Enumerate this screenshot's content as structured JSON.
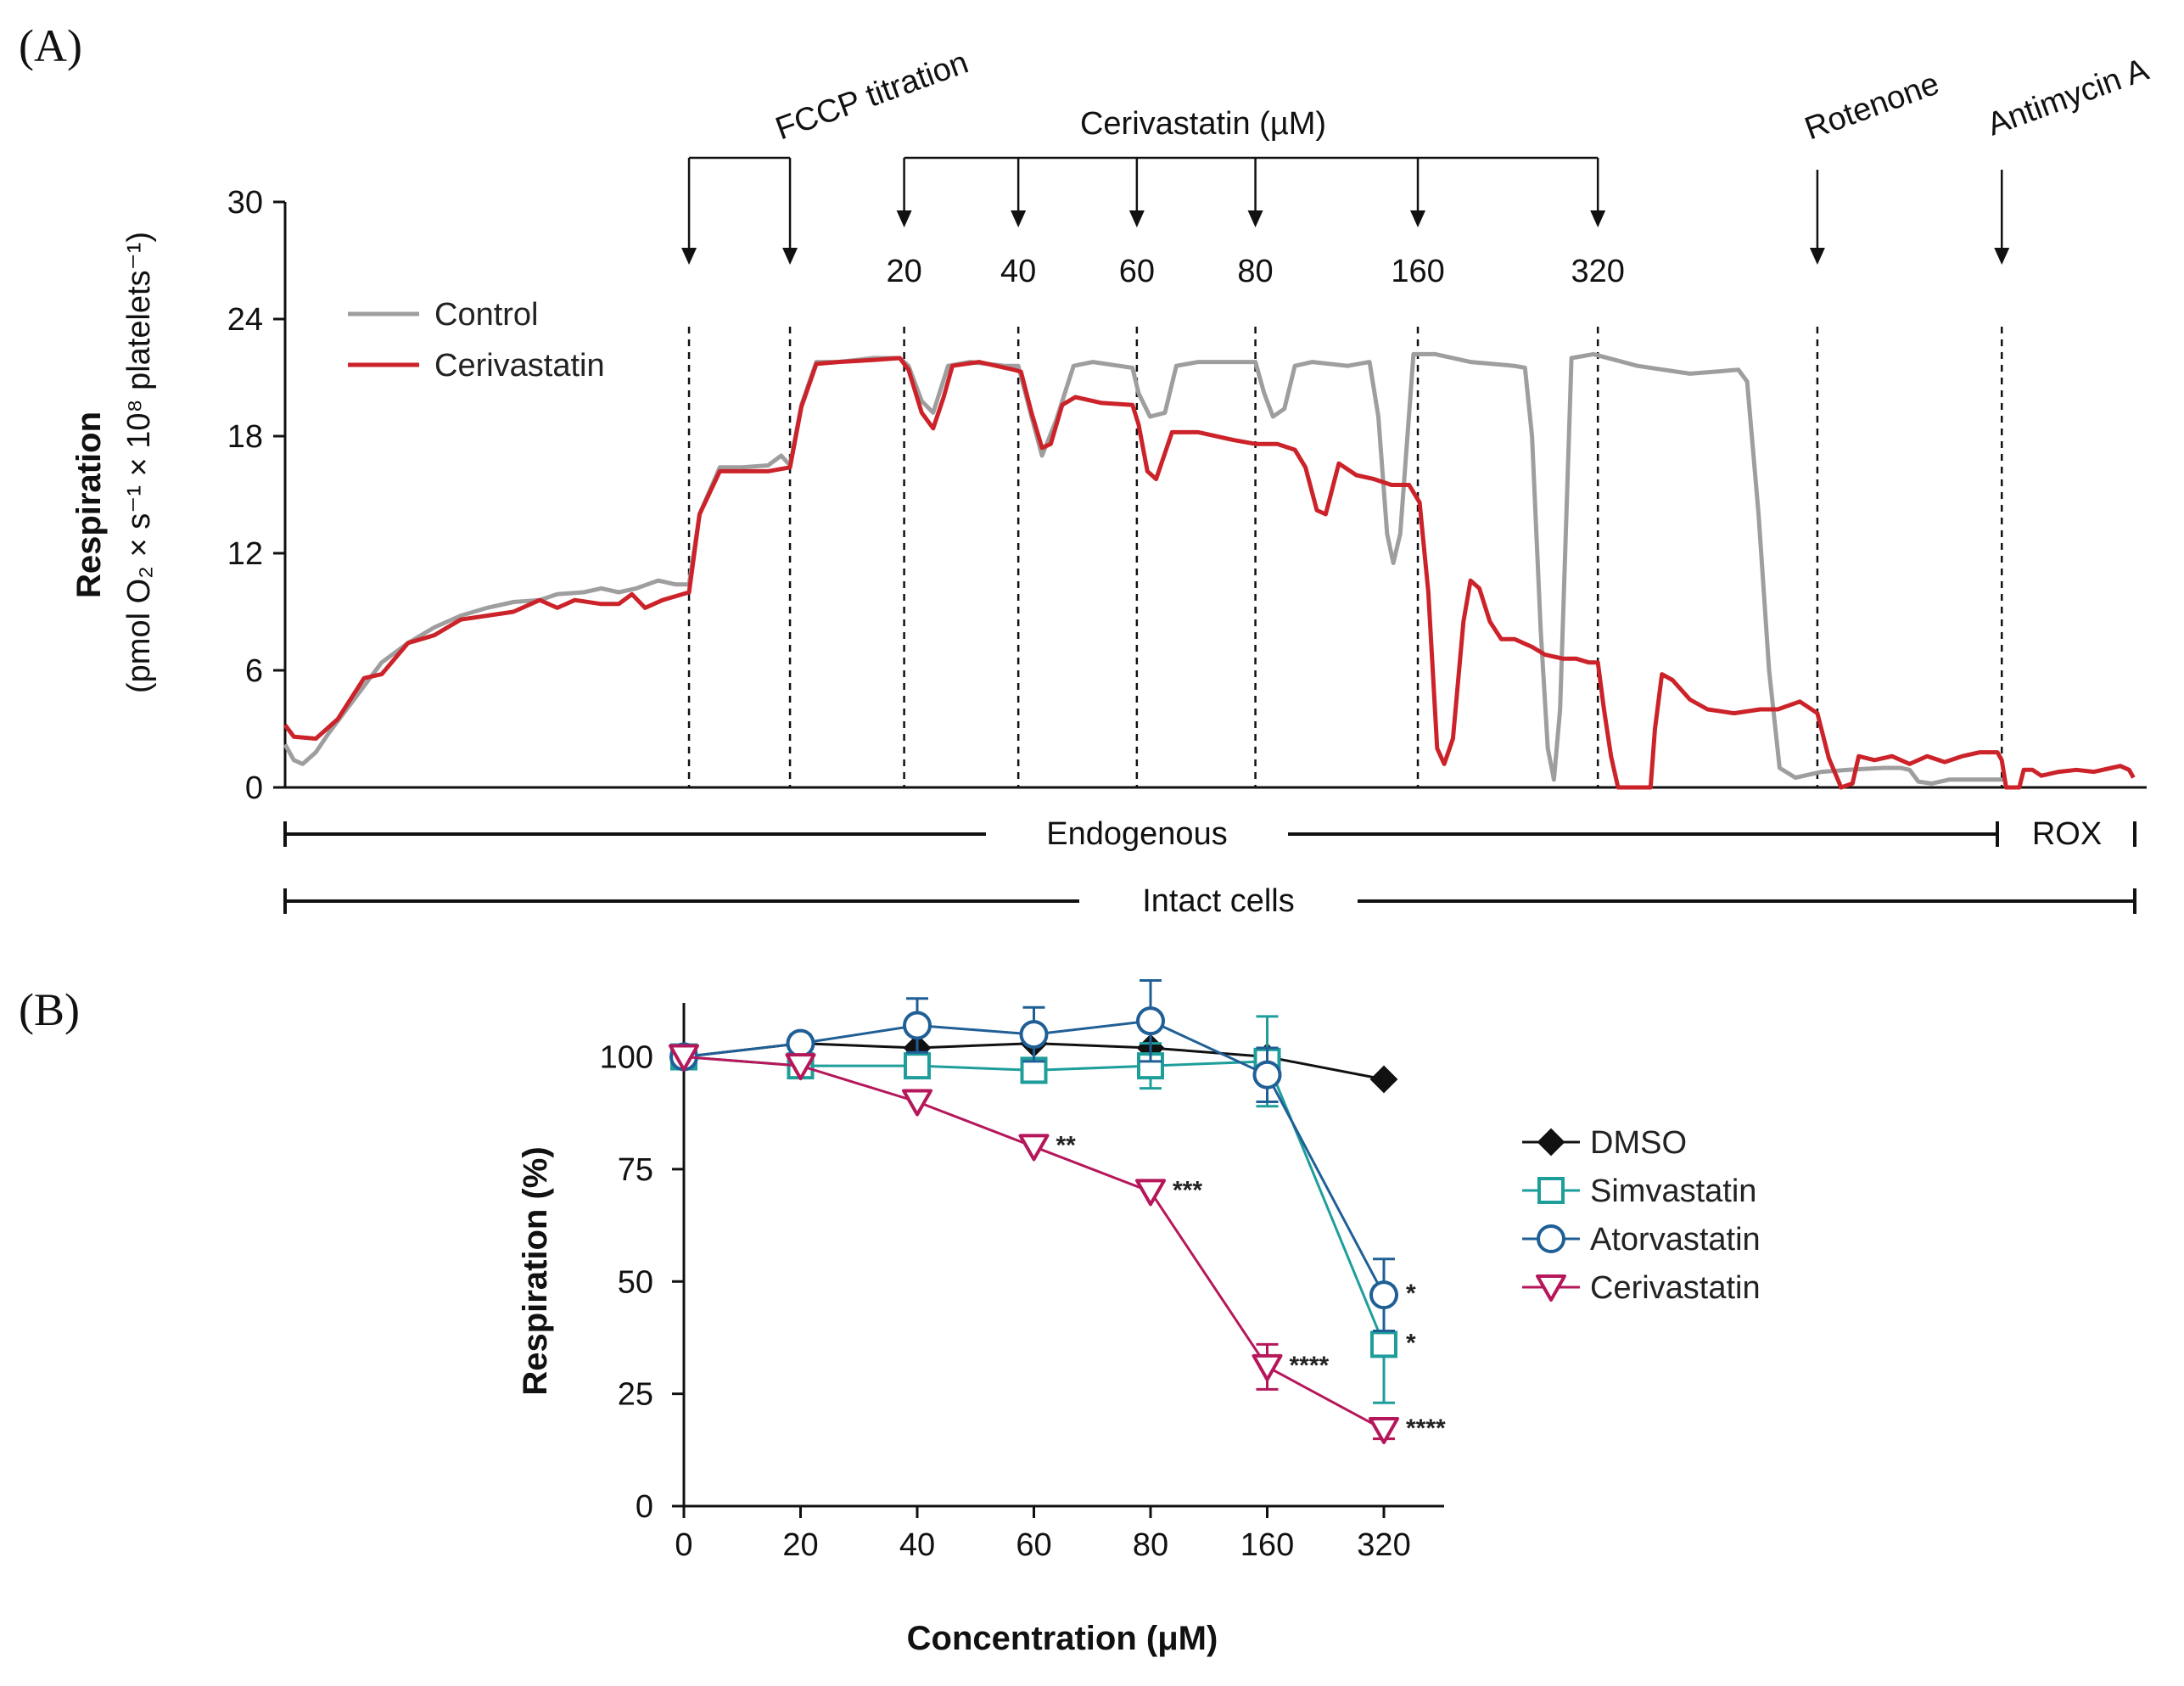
{
  "chart_data": [
    {
      "panel": "(A)",
      "type": "line",
      "ylabel": "Respiration",
      "ylabel_units": "(pmol O₂ × s⁻¹ × 10⁸ platelets⁻¹)",
      "ylim": [
        0,
        30
      ],
      "yticks": [
        "0",
        "6",
        "12",
        "18",
        "24",
        "30"
      ],
      "legend_position": "upper-left",
      "series": [
        {
          "name": "Control",
          "color": "#9e9e9e",
          "points": [
            [
              0,
              2.2
            ],
            [
              0.1,
              1.4
            ],
            [
              0.2,
              1.2
            ],
            [
              0.35,
              1.8
            ],
            [
              0.5,
              2.8
            ],
            [
              0.8,
              4.6
            ],
            [
              1.1,
              6.4
            ],
            [
              1.4,
              7.4
            ],
            [
              1.7,
              8.2
            ],
            [
              2,
              8.8
            ],
            [
              2.3,
              9.2
            ],
            [
              2.6,
              9.5
            ],
            [
              2.9,
              9.6
            ],
            [
              3.1,
              9.9
            ],
            [
              3.4,
              10.0
            ],
            [
              3.6,
              10.2
            ],
            [
              3.8,
              10.0
            ],
            [
              4.0,
              10.2
            ],
            [
              4.25,
              10.6
            ],
            [
              4.45,
              10.4
            ],
            [
              4.6,
              10.4
            ],
            [
              4.72,
              14.0
            ],
            [
              4.95,
              16.4
            ],
            [
              5.2,
              16.4
            ],
            [
              5.5,
              16.5
            ],
            [
              5.65,
              17.0
            ],
            [
              5.75,
              16.5
            ],
            [
              5.88,
              19.6
            ],
            [
              6.05,
              21.8
            ],
            [
              6.3,
              21.8
            ],
            [
              6.7,
              22.0
            ],
            [
              7.0,
              22.0
            ],
            [
              7.1,
              21.6
            ],
            [
              7.25,
              19.8
            ],
            [
              7.38,
              19.2
            ],
            [
              7.55,
              21.6
            ],
            [
              7.8,
              21.8
            ],
            [
              8.2,
              21.6
            ],
            [
              8.35,
              21.6
            ],
            [
              8.5,
              19.0
            ],
            [
              8.62,
              17.0
            ],
            [
              8.78,
              18.8
            ],
            [
              8.98,
              21.6
            ],
            [
              9.2,
              21.8
            ],
            [
              9.5,
              21.6
            ],
            [
              9.65,
              21.5
            ],
            [
              9.72,
              20.2
            ],
            [
              9.85,
              19.0
            ],
            [
              10.02,
              19.2
            ],
            [
              10.15,
              21.6
            ],
            [
              10.4,
              21.8
            ],
            [
              10.9,
              21.8
            ],
            [
              11.05,
              21.8
            ],
            [
              11.15,
              20.2
            ],
            [
              11.25,
              19.0
            ],
            [
              11.38,
              19.4
            ],
            [
              11.5,
              21.6
            ],
            [
              11.7,
              21.8
            ],
            [
              12.1,
              21.6
            ],
            [
              12.35,
              21.8
            ],
            [
              12.45,
              19.0
            ],
            [
              12.55,
              13.0
            ],
            [
              12.62,
              11.5
            ],
            [
              12.7,
              13.0
            ],
            [
              12.85,
              22.2
            ],
            [
              13.1,
              22.2
            ],
            [
              13.5,
              21.8
            ],
            [
              14.0,
              21.6
            ],
            [
              14.12,
              21.5
            ],
            [
              14.2,
              18.0
            ],
            [
              14.3,
              8.0
            ],
            [
              14.38,
              2.0
            ],
            [
              14.45,
              0.4
            ],
            [
              14.52,
              4.0
            ],
            [
              14.65,
              22.0
            ],
            [
              14.9,
              22.2
            ],
            [
              15.4,
              21.6
            ],
            [
              16.0,
              21.2
            ],
            [
              16.55,
              21.4
            ],
            [
              16.65,
              20.8
            ],
            [
              16.78,
              14.0
            ],
            [
              16.9,
              6.0
            ],
            [
              17.02,
              1.0
            ],
            [
              17.2,
              0.5
            ],
            [
              17.5,
              0.8
            ],
            [
              17.8,
              0.9
            ],
            [
              18.2,
              1.0
            ],
            [
              18.4,
              1.0
            ],
            [
              18.5,
              0.9
            ],
            [
              18.6,
              0.3
            ],
            [
              18.75,
              0.2
            ],
            [
              18.95,
              0.4
            ],
            [
              19.3,
              0.4
            ],
            [
              19.6,
              0.4
            ]
          ]
        },
        {
          "name": "Cerivastatin",
          "color": "#cc2229",
          "points": [
            [
              0,
              3.2
            ],
            [
              0.1,
              2.6
            ],
            [
              0.35,
              2.5
            ],
            [
              0.6,
              3.5
            ],
            [
              0.9,
              5.6
            ],
            [
              1.1,
              5.8
            ],
            [
              1.4,
              7.4
            ],
            [
              1.7,
              7.8
            ],
            [
              2.0,
              8.6
            ],
            [
              2.3,
              8.8
            ],
            [
              2.6,
              9.0
            ],
            [
              2.9,
              9.6
            ],
            [
              3.1,
              9.2
            ],
            [
              3.3,
              9.6
            ],
            [
              3.6,
              9.4
            ],
            [
              3.8,
              9.4
            ],
            [
              3.95,
              9.9
            ],
            [
              4.1,
              9.2
            ],
            [
              4.3,
              9.6
            ],
            [
              4.45,
              9.8
            ],
            [
              4.6,
              10.0
            ],
            [
              4.72,
              14.0
            ],
            [
              4.95,
              16.2
            ],
            [
              5.2,
              16.2
            ],
            [
              5.5,
              16.2
            ],
            [
              5.75,
              16.4
            ],
            [
              5.88,
              19.5
            ],
            [
              6.05,
              21.7
            ],
            [
              6.3,
              21.8
            ],
            [
              6.7,
              21.9
            ],
            [
              7.0,
              22.0
            ],
            [
              7.1,
              21.4
            ],
            [
              7.25,
              19.2
            ],
            [
              7.38,
              18.4
            ],
            [
              7.5,
              20.0
            ],
            [
              7.6,
              21.6
            ],
            [
              7.9,
              21.8
            ],
            [
              8.3,
              21.4
            ],
            [
              8.38,
              21.3
            ],
            [
              8.5,
              19.2
            ],
            [
              8.62,
              17.4
            ],
            [
              8.72,
              17.6
            ],
            [
              8.85,
              19.6
            ],
            [
              9.0,
              20.0
            ],
            [
              9.3,
              19.7
            ],
            [
              9.65,
              19.6
            ],
            [
              9.72,
              18.6
            ],
            [
              9.82,
              16.2
            ],
            [
              9.92,
              15.8
            ],
            [
              10.1,
              18.2
            ],
            [
              10.4,
              18.2
            ],
            [
              10.8,
              17.8
            ],
            [
              11.05,
              17.6
            ],
            [
              11.3,
              17.6
            ],
            [
              11.5,
              17.3
            ],
            [
              11.62,
              16.4
            ],
            [
              11.75,
              14.2
            ],
            [
              11.85,
              14.0
            ],
            [
              12.0,
              16.6
            ],
            [
              12.2,
              16.0
            ],
            [
              12.4,
              15.8
            ],
            [
              12.6,
              15.5
            ],
            [
              12.8,
              15.5
            ],
            [
              12.92,
              14.6
            ],
            [
              13.02,
              10.0
            ],
            [
              13.12,
              2.0
            ],
            [
              13.2,
              1.2
            ],
            [
              13.3,
              2.5
            ],
            [
              13.42,
              8.5
            ],
            [
              13.5,
              10.6
            ],
            [
              13.6,
              10.2
            ],
            [
              13.72,
              8.5
            ],
            [
              13.85,
              7.6
            ],
            [
              14.0,
              7.6
            ],
            [
              14.2,
              7.2
            ],
            [
              14.35,
              6.8
            ],
            [
              14.55,
              6.6
            ],
            [
              14.7,
              6.6
            ],
            [
              14.85,
              6.4
            ],
            [
              14.95,
              6.4
            ],
            [
              15.02,
              4.0
            ],
            [
              15.1,
              1.6
            ],
            [
              15.18,
              0.0
            ],
            [
              15.55,
              0.0
            ],
            [
              15.6,
              3.0
            ],
            [
              15.68,
              5.8
            ],
            [
              15.8,
              5.5
            ],
            [
              16.0,
              4.5
            ],
            [
              16.2,
              4.0
            ],
            [
              16.5,
              3.8
            ],
            [
              16.8,
              4.0
            ],
            [
              17.0,
              4.0
            ],
            [
              17.25,
              4.4
            ],
            [
              17.45,
              3.8
            ],
            [
              17.58,
              1.5
            ],
            [
              17.72,
              0.0
            ],
            [
              17.85,
              0.2
            ],
            [
              17.92,
              1.6
            ],
            [
              18.1,
              1.4
            ],
            [
              18.3,
              1.6
            ],
            [
              18.5,
              1.2
            ],
            [
              18.7,
              1.6
            ],
            [
              18.9,
              1.3
            ],
            [
              19.1,
              1.6
            ],
            [
              19.3,
              1.8
            ],
            [
              19.5,
              1.8
            ],
            [
              19.55,
              1.4
            ],
            [
              19.6,
              0.0
            ],
            [
              19.75,
              0.0
            ],
            [
              19.8,
              0.9
            ],
            [
              19.9,
              0.9
            ],
            [
              20.0,
              0.6
            ],
            [
              20.2,
              0.8
            ],
            [
              20.4,
              0.9
            ],
            [
              20.6,
              0.8
            ],
            [
              20.8,
              1.0
            ],
            [
              20.9,
              1.1
            ],
            [
              21.0,
              0.9
            ],
            [
              21.05,
              0.5
            ]
          ]
        }
      ],
      "event_markers": [
        {
          "x": 4.6,
          "label": ""
        },
        {
          "x": 5.75,
          "label": ""
        },
        {
          "x": 7.05,
          "label": "20"
        },
        {
          "x": 8.35,
          "label": "40"
        },
        {
          "x": 9.7,
          "label": "60"
        },
        {
          "x": 11.05,
          "label": "80"
        },
        {
          "x": 12.9,
          "label": "160"
        },
        {
          "x": 14.95,
          "label": "320"
        },
        {
          "x": 17.45,
          "label": ""
        },
        {
          "x": 19.55,
          "label": ""
        }
      ],
      "annotations": {
        "fccp": "FCCP titration",
        "cerivastatin": "Cerivastatin (µM)",
        "rotenone": "Rotenone",
        "antimycin": "Antimycin A"
      },
      "states": {
        "endogenous": "Endogenous",
        "rox": "ROX",
        "intact": "Intact cells"
      }
    },
    {
      "panel": "(B)",
      "type": "line",
      "xlabel": "Concentration (μM)",
      "ylabel": "Respiration (%)",
      "categories": [
        "0",
        "20",
        "40",
        "60",
        "80",
        "160",
        "320"
      ],
      "ylim": [
        0,
        112
      ],
      "yticks": [
        "0",
        "25",
        "50",
        "75",
        "100"
      ],
      "legend_position": "right",
      "series": [
        {
          "name": "DMSO",
          "color": "#111111",
          "marker": "diamond",
          "values": [
            100,
            103,
            102,
            103,
            102,
            100,
            95
          ],
          "errors": [
            0,
            0,
            0,
            0,
            0,
            0,
            0
          ],
          "significance": [
            "",
            "",
            "",
            "",
            "",
            "",
            ""
          ]
        },
        {
          "name": "Simvastatin",
          "color": "#1e9e9b",
          "marker": "square",
          "values": [
            100,
            98,
            98,
            97,
            98,
            99,
            36
          ],
          "errors": [
            0,
            2,
            2,
            2,
            5,
            10,
            13
          ],
          "significance": [
            "",
            "",
            "",
            "",
            "",
            "",
            "*"
          ]
        },
        {
          "name": "Atorvastatin",
          "color": "#1f5f96",
          "marker": "circle",
          "values": [
            100,
            103,
            107,
            105,
            108,
            96,
            47
          ],
          "errors": [
            0,
            2,
            6,
            6,
            9,
            6,
            8
          ],
          "significance": [
            "",
            "",
            "",
            "",
            "",
            "",
            "*"
          ]
        },
        {
          "name": "Cerivastatin",
          "color": "#b5175a",
          "marker": "triangle-down",
          "values": [
            100,
            98,
            90,
            80,
            70,
            31,
            17
          ],
          "errors": [
            0,
            0,
            0,
            0,
            0,
            5,
            2
          ],
          "significance": [
            "",
            "",
            "",
            "**",
            "***",
            "****",
            "****"
          ]
        }
      ]
    }
  ]
}
